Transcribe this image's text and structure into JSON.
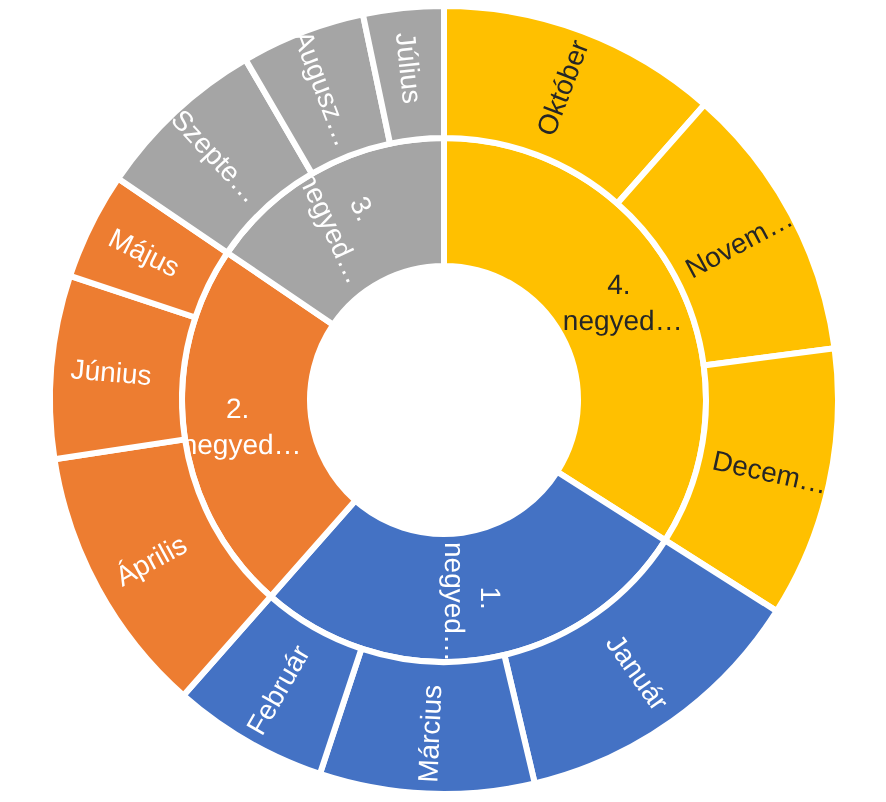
{
  "chart_data": [
    {
      "type": "donut",
      "categories": [
        "4. negyed…",
        "1. negyed…",
        "2. negyed…",
        "3. negyed…"
      ],
      "values": [
        34.0,
        27.5,
        23.0,
        15.5
      ],
      "colors": [
        "#ffc000",
        "#4472c4",
        "#ed7d31",
        "#a5a5a5"
      ]
    },
    {
      "type": "donut",
      "categories": [
        "Október",
        "Novem…",
        "Decem…",
        "Január",
        "Március",
        "Február",
        "Április",
        "Június",
        "Május",
        "Szepte…",
        "Augusz…",
        "Július"
      ],
      "values": [
        11.5,
        11.4,
        11.1,
        12.3,
        8.8,
        6.4,
        11.1,
        7.5,
        4.4,
        7.1,
        5.1,
        3.3
      ],
      "colors": [
        "#ffc000",
        "#ffc000",
        "#ffc000",
        "#4472c4",
        "#4472c4",
        "#4472c4",
        "#ed7d31",
        "#ed7d31",
        "#ed7d31",
        "#a5a5a5",
        "#a5a5a5",
        "#a5a5a5"
      ]
    }
  ]
}
